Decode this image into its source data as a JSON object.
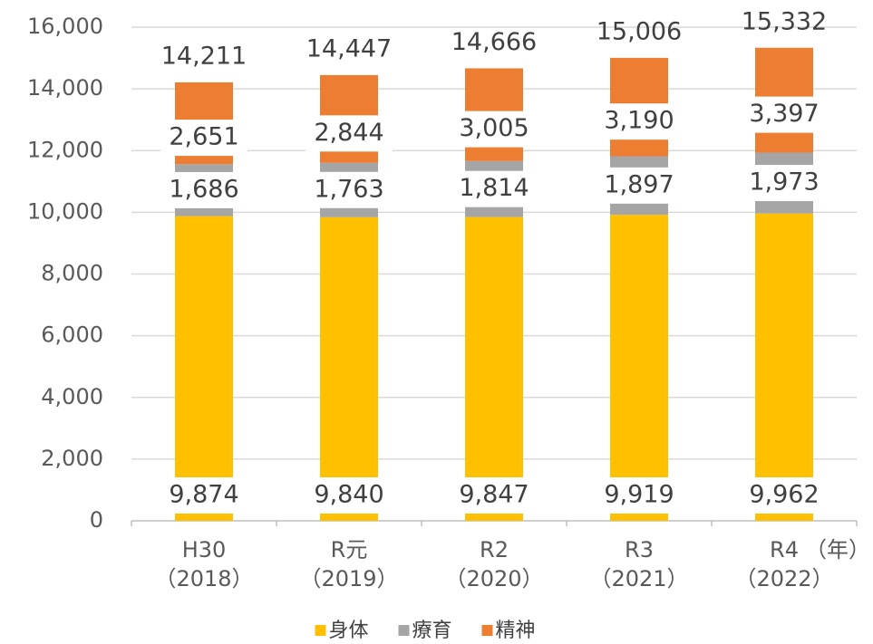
{
  "chart_data": {
    "type": "stacked-bar",
    "categories": [
      [
        "H30",
        "（2018）"
      ],
      [
        "R元",
        "（2019）"
      ],
      [
        "R2",
        "（2020）"
      ],
      [
        "R3",
        "（2021）"
      ],
      [
        "R4",
        "（2022）"
      ]
    ],
    "x_unit": "（年）",
    "series": [
      {
        "name": "身体",
        "color": "#ffc000",
        "values": [
          9874,
          9840,
          9847,
          9919,
          9962
        ],
        "value_labels": [
          "9,874",
          "9,840",
          "9,847",
          "9,919",
          "9,962"
        ]
      },
      {
        "name": "療育",
        "color": "#a5a5a5",
        "values": [
          1686,
          1763,
          1814,
          1897,
          1973
        ],
        "value_labels": [
          "1,686",
          "1,763",
          "1,814",
          "1,897",
          "1,973"
        ]
      },
      {
        "name": "精神",
        "color": "#ed7d31",
        "values": [
          2651,
          2844,
          3005,
          3190,
          3397
        ],
        "value_labels": [
          "2,651",
          "2,844",
          "3,005",
          "3,190",
          "3,397"
        ]
      }
    ],
    "totals": {
      "values": [
        14211,
        14447,
        14666,
        15006,
        15332
      ],
      "value_labels": [
        "14,211",
        "14,447",
        "14,666",
        "15,006",
        "15,332"
      ]
    },
    "ylim": [
      0,
      16000
    ],
    "yticks": [
      0,
      {
        "value": 2000,
        "label": "2,000"
      },
      {
        "value": 4000,
        "label": "4,000"
      },
      {
        "value": 6000,
        "label": "6,000"
      },
      {
        "value": 8000,
        "label": "8,000"
      },
      {
        "value": 10000,
        "label": "10,000"
      },
      {
        "value": 12000,
        "label": "12,000"
      },
      {
        "value": 14000,
        "label": "14,000"
      },
      {
        "value": 16000,
        "label": "16,000"
      }
    ],
    "grid": true
  }
}
